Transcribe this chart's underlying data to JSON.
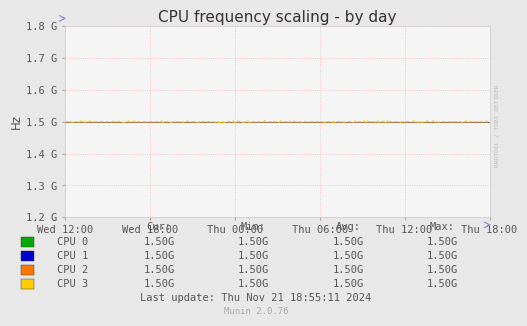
{
  "title": "CPU frequency scaling - by day",
  "ylabel": "Hz",
  "background_color": "#e8e8e8",
  "plot_background_color": "#f5f5f5",
  "grid_color": "#ffaaaa",
  "ylim": [
    1200000000.0,
    1800000000.0
  ],
  "yticks": [
    1200000000.0,
    1300000000.0,
    1400000000.0,
    1500000000.0,
    1600000000.0,
    1700000000.0,
    1800000000.0
  ],
  "ytick_labels": [
    "1.2 G",
    "1.3 G",
    "1.4 G",
    "1.5 G",
    "1.6 G",
    "1.7 G",
    "1.8 G"
  ],
  "xtick_labels": [
    "Wed 12:00",
    "Wed 18:00",
    "Thu 00:00",
    "Thu 06:00",
    "Thu 12:00",
    "Thu 18:00"
  ],
  "xtick_positions": [
    0,
    6,
    12,
    18,
    24,
    30
  ],
  "xlim": [
    0,
    30
  ],
  "cpu_value": 1500000000.0,
  "line_colors": [
    "#00aa00",
    "#0000cc",
    "#ff7700",
    "#ffcc00"
  ],
  "cpu_labels": [
    "CPU 0",
    "CPU 1",
    "CPU 2",
    "CPU 3"
  ],
  "legend_headers": [
    "Cur:",
    "Min:",
    "Avg:",
    "Max:"
  ],
  "legend_values": [
    "1.50G",
    "1.50G",
    "1.50G",
    "1.50G"
  ],
  "last_update": "Last update: Thu Nov 21 18:55:11 2024",
  "munin_version": "Munin 2.0.76",
  "rrdtool_label": "RRDTOOL / TOBI OETIKER",
  "title_fontsize": 11,
  "axis_fontsize": 7.5,
  "table_fontsize": 7.5,
  "small_fontsize": 6.5
}
